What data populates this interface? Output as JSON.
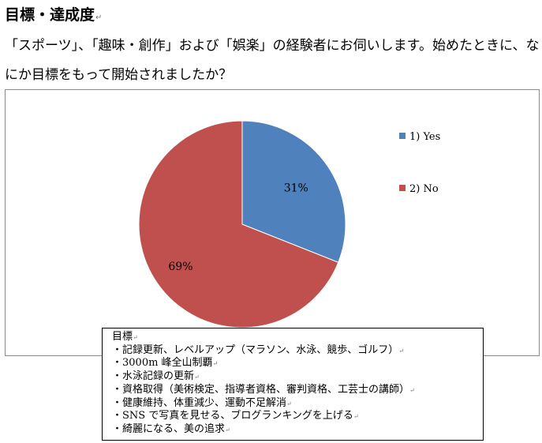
{
  "heading": "目標・達成度",
  "paragraph_mark": "↵",
  "question": "「スポーツ」、「趣味・創作」および「娯楽」の経験者にお伺いします。始めたときに、なにか目標をもって開始されましたか？",
  "chart_data": {
    "type": "pie",
    "categories": [
      "1) Yes",
      "2) No"
    ],
    "values": [
      31,
      69
    ],
    "unit": "%",
    "data_labels": [
      "31%",
      "69%"
    ],
    "colors": [
      "#4f81bd",
      "#c0504d"
    ],
    "start_angle": "12 o'clock, clockwise",
    "legend": "right",
    "title": ""
  },
  "notes": {
    "title": "目標",
    "items": [
      "・記録更新、レベルアップ（マラソン、水泳、競歩、ゴルフ）",
      "・3000m 峰全山制覇",
      "・水泳記録の更新",
      "・資格取得（美術検定、指導者資格、審判資格、工芸士の講師）",
      "・健康維持、体重減少、運動不足解消",
      "・SNS で写真を見せる、ブログランキングを上げる",
      "・綺麗になる、美の追求"
    ]
  }
}
